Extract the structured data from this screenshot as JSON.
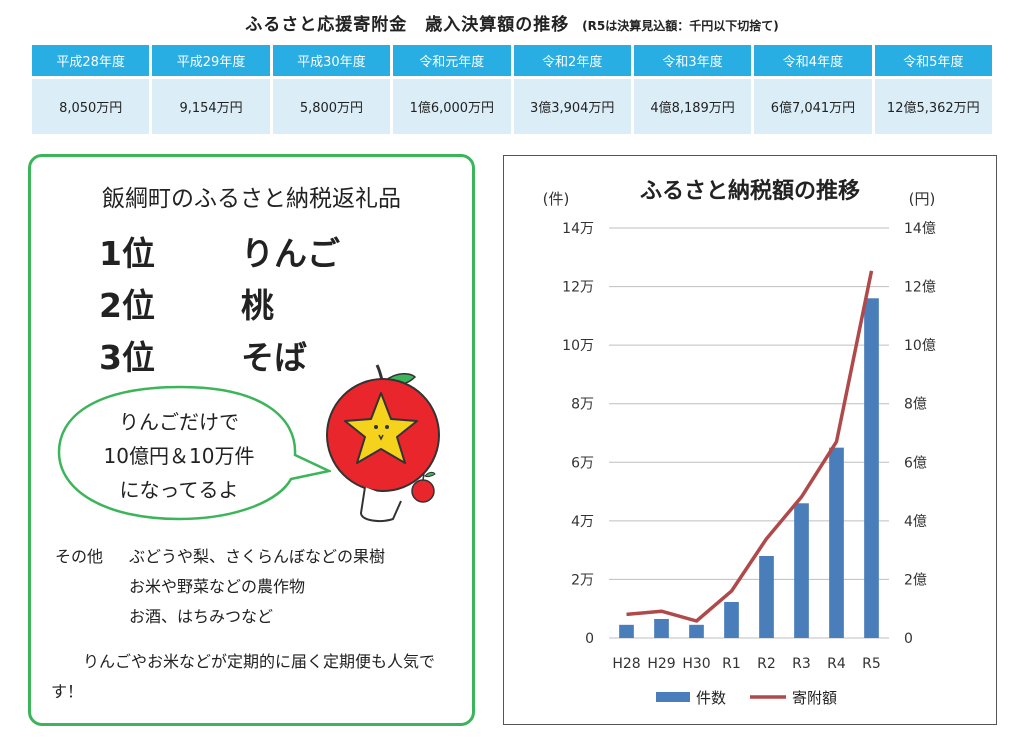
{
  "table": {
    "title": "ふるさと応援寄附金　歳入決算額の推移",
    "note": "(R5は決算見込額：千円以下切捨て)",
    "headers": [
      "平成28年度",
      "平成29年度",
      "平成30年度",
      "令和元年度",
      "令和2年度",
      "令和3年度",
      "令和4年度",
      "令和5年度"
    ],
    "values": [
      "8,050万円",
      "9,154万円",
      "5,800万円",
      "1億6,000万円",
      "3億3,904万円",
      "4億8,189万円",
      "6億7,041万円",
      "12億5,362万円"
    ]
  },
  "panel": {
    "title": "飯綱町のふるさと納税返礼品",
    "ranking": [
      {
        "rank": "1位",
        "item": "りんご"
      },
      {
        "rank": "2位",
        "item": "桃"
      },
      {
        "rank": "3位",
        "item": "そば"
      }
    ],
    "bubble_lines": [
      "りんごだけで",
      "10億円＆10万件",
      "になってるよ"
    ],
    "others_label": "その他",
    "others_lines": [
      "ぶどうや梨、さくらんぼなどの果樹",
      "お米や野菜などの農作物",
      "お酒、はちみつなど"
    ],
    "footer": "りんごやお米などが定期的に届く定期便も人気です！",
    "colors": {
      "border": "#3cb55a",
      "apple": "#e8262b",
      "star": "#f5d21c"
    }
  },
  "chart_data": {
    "type": "bar",
    "title": "ふるさと納税額の推移",
    "categories": [
      "H28",
      "H29",
      "H30",
      "R1",
      "R2",
      "R3",
      "R4",
      "R5"
    ],
    "left_unit": "(件)",
    "right_unit": "(円)",
    "left_ticks": [
      "0",
      "2万",
      "4万",
      "6万",
      "8万",
      "10万",
      "12万",
      "14万"
    ],
    "right_ticks": [
      "0",
      "2億",
      "4億",
      "6億",
      "8億",
      "10億",
      "12億",
      "14億"
    ],
    "ylim_left": [
      0,
      140000
    ],
    "ylim_right": [
      0,
      1400000000
    ],
    "grid": true,
    "legend_position": "bottom",
    "series": [
      {
        "name": "件数",
        "type": "bar",
        "axis": "left",
        "color": "#4a7ebb",
        "values": [
          4500,
          6500,
          4500,
          12300,
          28000,
          46000,
          65000,
          116000
        ]
      },
      {
        "name": "寄附額",
        "type": "line",
        "axis": "right",
        "color": "#b04a4a",
        "values": [
          80500000,
          91540000,
          58000000,
          160000000,
          339040000,
          481890000,
          670410000,
          1253620000
        ]
      }
    ]
  }
}
